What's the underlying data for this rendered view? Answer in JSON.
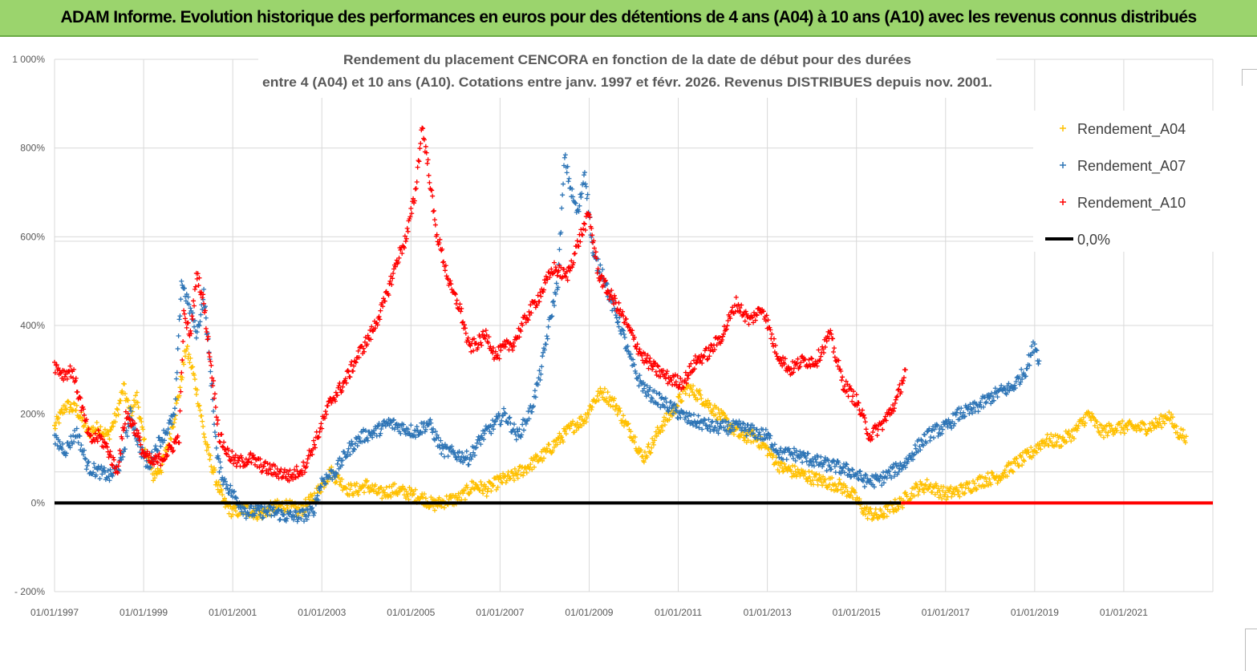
{
  "banner": {
    "title": "ADAM Informe. Evolution historique des performances en euros pour des détentions de 4 ans (A04) à 10 ans (A10) avec les revenus connus distribués"
  },
  "colors": {
    "banner_bg": "#9bd46d",
    "A04": "#ffc000",
    "A07": "#2e75b6",
    "A10": "#ff0000",
    "zero": "#000000",
    "grid": "#d9d9d9"
  },
  "chart_data": {
    "type": "scatter",
    "title_line1": "Rendement du placement CENCORA en fonction de la date de début pour des durées",
    "title_line2": "entre 4 (A04) et 10 ans (A10). Cotations entre janv. 1997 et févr. 2026. Revenus DISTRIBUES depuis nov. 2001.",
    "xlabel": "",
    "ylabel": "",
    "x_range": [
      "01/01/1997",
      "01/01/2023"
    ],
    "x_ticks": [
      "01/01/1997",
      "01/01/1999",
      "01/01/2001",
      "01/01/2003",
      "01/01/2005",
      "01/01/2007",
      "01/01/2009",
      "01/01/2011",
      "01/01/2013",
      "01/01/2015",
      "01/01/2017",
      "01/01/2019",
      "01/01/2021"
    ],
    "ylim": [
      -200,
      1000
    ],
    "y_ticks": [
      -200,
      0,
      200,
      400,
      600,
      800,
      1000
    ],
    "y_tick_labels": [
      "- 200%",
      "0%",
      "200%",
      "400%",
      "600%",
      "800%",
      "1 000%"
    ],
    "grid": true,
    "legend_position": "top-right",
    "series": [
      {
        "name": "Rendement_A04",
        "marker": "+",
        "points": [
          [
            1997.0,
            170
          ],
          [
            1997.25,
            220
          ],
          [
            1997.5,
            210
          ],
          [
            1997.75,
            160
          ],
          [
            1998.0,
            170
          ],
          [
            1998.2,
            150
          ],
          [
            1998.4,
            200
          ],
          [
            1998.55,
            260
          ],
          [
            1998.7,
            200
          ],
          [
            1998.85,
            240
          ],
          [
            1999.0,
            140
          ],
          [
            1999.2,
            60
          ],
          [
            1999.4,
            80
          ],
          [
            1999.6,
            150
          ],
          [
            1999.8,
            250
          ],
          [
            1999.95,
            350
          ],
          [
            2000.1,
            300
          ],
          [
            2000.25,
            220
          ],
          [
            2000.4,
            130
          ],
          [
            2000.6,
            60
          ],
          [
            2000.8,
            0
          ],
          [
            2001.0,
            -20
          ],
          [
            2001.3,
            -15
          ],
          [
            2001.6,
            -25
          ],
          [
            2001.9,
            -10
          ],
          [
            2002.2,
            -5
          ],
          [
            2002.5,
            -20
          ],
          [
            2002.8,
            10
          ],
          [
            2003.0,
            40
          ],
          [
            2003.2,
            70
          ],
          [
            2003.4,
            50
          ],
          [
            2003.6,
            30
          ],
          [
            2003.8,
            30
          ],
          [
            2004.0,
            40
          ],
          [
            2004.3,
            20
          ],
          [
            2004.6,
            30
          ],
          [
            2005.0,
            20
          ],
          [
            2005.3,
            10
          ],
          [
            2005.5,
            -5
          ],
          [
            2005.8,
            5
          ],
          [
            2006.1,
            10
          ],
          [
            2006.4,
            40
          ],
          [
            2006.7,
            30
          ],
          [
            2007.0,
            50
          ],
          [
            2007.3,
            60
          ],
          [
            2007.6,
            80
          ],
          [
            2008.0,
            110
          ],
          [
            2008.3,
            140
          ],
          [
            2008.6,
            170
          ],
          [
            2008.9,
            190
          ],
          [
            2009.1,
            230
          ],
          [
            2009.3,
            250
          ],
          [
            2009.6,
            220
          ],
          [
            2009.8,
            180
          ],
          [
            2010.0,
            150
          ],
          [
            2010.2,
            100
          ],
          [
            2010.4,
            130
          ],
          [
            2010.6,
            170
          ],
          [
            2010.9,
            210
          ],
          [
            2011.2,
            260
          ],
          [
            2011.5,
            240
          ],
          [
            2011.8,
            210
          ],
          [
            2012.1,
            180
          ],
          [
            2012.4,
            150
          ],
          [
            2012.7,
            150
          ],
          [
            2013.0,
            120
          ],
          [
            2013.3,
            80
          ],
          [
            2013.6,
            70
          ],
          [
            2013.9,
            60
          ],
          [
            2014.2,
            50
          ],
          [
            2014.6,
            40
          ],
          [
            2014.9,
            20
          ],
          [
            2015.2,
            -20
          ],
          [
            2015.5,
            -30
          ],
          [
            2015.8,
            -10
          ],
          [
            2016.0,
            0
          ],
          [
            2016.3,
            30
          ],
          [
            2016.6,
            40
          ],
          [
            2017.0,
            20
          ],
          [
            2017.4,
            30
          ],
          [
            2017.8,
            50
          ],
          [
            2018.2,
            60
          ],
          [
            2018.6,
            90
          ],
          [
            2018.9,
            110
          ],
          [
            2019.2,
            140
          ],
          [
            2019.6,
            140
          ],
          [
            2019.9,
            160
          ],
          [
            2020.2,
            200
          ],
          [
            2020.5,
            160
          ],
          [
            2020.8,
            170
          ],
          [
            2021.2,
            170
          ],
          [
            2021.5,
            170
          ],
          [
            2021.8,
            180
          ],
          [
            2022.0,
            200
          ],
          [
            2022.2,
            160
          ],
          [
            2022.4,
            150
          ]
        ]
      },
      {
        "name": "Rendement_A07",
        "marker": "+",
        "points": [
          [
            1997.0,
            140
          ],
          [
            1997.25,
            120
          ],
          [
            1997.5,
            160
          ],
          [
            1997.75,
            80
          ],
          [
            1998.0,
            70
          ],
          [
            1998.25,
            60
          ],
          [
            1998.5,
            90
          ],
          [
            1998.7,
            200
          ],
          [
            1998.9,
            130
          ],
          [
            1999.1,
            80
          ],
          [
            1999.3,
            130
          ],
          [
            1999.5,
            160
          ],
          [
            1999.7,
            200
          ],
          [
            1999.85,
            500
          ],
          [
            2000.0,
            450
          ],
          [
            2000.2,
            380
          ],
          [
            2000.35,
            470
          ],
          [
            2000.5,
            300
          ],
          [
            2000.65,
            100
          ],
          [
            2000.8,
            50
          ],
          [
            2001.0,
            20
          ],
          [
            2001.3,
            -20
          ],
          [
            2001.6,
            -20
          ],
          [
            2001.9,
            -20
          ],
          [
            2002.2,
            -30
          ],
          [
            2002.5,
            -30
          ],
          [
            2002.8,
            -20
          ],
          [
            2003.0,
            50
          ],
          [
            2003.3,
            70
          ],
          [
            2003.6,
            120
          ],
          [
            2003.9,
            150
          ],
          [
            2004.2,
            160
          ],
          [
            2004.5,
            180
          ],
          [
            2004.8,
            170
          ],
          [
            2005.1,
            160
          ],
          [
            2005.4,
            180
          ],
          [
            2005.7,
            120
          ],
          [
            2006.0,
            110
          ],
          [
            2006.3,
            100
          ],
          [
            2006.6,
            150
          ],
          [
            2006.9,
            180
          ],
          [
            2007.1,
            200
          ],
          [
            2007.4,
            150
          ],
          [
            2007.7,
            210
          ],
          [
            2007.9,
            290
          ],
          [
            2008.1,
            400
          ],
          [
            2008.3,
            500
          ],
          [
            2008.45,
            780
          ],
          [
            2008.6,
            700
          ],
          [
            2008.75,
            650
          ],
          [
            2008.9,
            750
          ],
          [
            2009.1,
            550
          ],
          [
            2009.3,
            520
          ],
          [
            2009.5,
            450
          ],
          [
            2009.7,
            400
          ],
          [
            2009.9,
            330
          ],
          [
            2010.1,
            280
          ],
          [
            2010.3,
            250
          ],
          [
            2010.6,
            230
          ],
          [
            2010.9,
            210
          ],
          [
            2011.2,
            190
          ],
          [
            2011.5,
            180
          ],
          [
            2011.8,
            170
          ],
          [
            2012.1,
            170
          ],
          [
            2012.4,
            170
          ],
          [
            2012.7,
            160
          ],
          [
            2013.0,
            150
          ],
          [
            2013.3,
            110
          ],
          [
            2013.6,
            110
          ],
          [
            2013.9,
            100
          ],
          [
            2014.2,
            90
          ],
          [
            2014.6,
            80
          ],
          [
            2014.9,
            70
          ],
          [
            2015.2,
            50
          ],
          [
            2015.5,
            50
          ],
          [
            2015.8,
            70
          ],
          [
            2016.1,
            90
          ],
          [
            2016.4,
            130
          ],
          [
            2016.7,
            160
          ],
          [
            2017.0,
            170
          ],
          [
            2017.3,
            200
          ],
          [
            2017.6,
            210
          ],
          [
            2017.9,
            230
          ],
          [
            2018.2,
            250
          ],
          [
            2018.5,
            260
          ],
          [
            2018.8,
            300
          ],
          [
            2019.0,
            360
          ],
          [
            2019.1,
            320
          ]
        ]
      },
      {
        "name": "Rendement_A10",
        "marker": "+",
        "points": [
          [
            1997.0,
            310
          ],
          [
            1997.2,
            290
          ],
          [
            1997.4,
            300
          ],
          [
            1997.6,
            220
          ],
          [
            1997.8,
            140
          ],
          [
            1998.0,
            150
          ],
          [
            1998.2,
            120
          ],
          [
            1998.4,
            70
          ],
          [
            1998.6,
            200
          ],
          [
            1998.8,
            170
          ],
          [
            1999.0,
            110
          ],
          [
            1999.2,
            90
          ],
          [
            1999.4,
            100
          ],
          [
            1999.6,
            120
          ],
          [
            1999.8,
            150
          ],
          [
            1999.9,
            420
          ],
          [
            2000.05,
            380
          ],
          [
            2000.2,
            520
          ],
          [
            2000.35,
            450
          ],
          [
            2000.5,
            320
          ],
          [
            2000.7,
            150
          ],
          [
            2000.9,
            110
          ],
          [
            2001.1,
            90
          ],
          [
            2001.4,
            100
          ],
          [
            2001.7,
            80
          ],
          [
            2002.0,
            70
          ],
          [
            2002.3,
            60
          ],
          [
            2002.6,
            80
          ],
          [
            2002.9,
            150
          ],
          [
            2003.2,
            230
          ],
          [
            2003.5,
            270
          ],
          [
            2003.8,
            330
          ],
          [
            2004.1,
            380
          ],
          [
            2004.4,
            450
          ],
          [
            2004.7,
            550
          ],
          [
            2004.9,
            600
          ],
          [
            2005.1,
            700
          ],
          [
            2005.25,
            850
          ],
          [
            2005.4,
            750
          ],
          [
            2005.55,
            620
          ],
          [
            2005.7,
            560
          ],
          [
            2005.9,
            480
          ],
          [
            2006.1,
            440
          ],
          [
            2006.3,
            350
          ],
          [
            2006.5,
            360
          ],
          [
            2006.7,
            380
          ],
          [
            2006.9,
            330
          ],
          [
            2007.1,
            350
          ],
          [
            2007.3,
            360
          ],
          [
            2007.6,
            420
          ],
          [
            2007.9,
            470
          ],
          [
            2008.2,
            530
          ],
          [
            2008.5,
            510
          ],
          [
            2008.8,
            600
          ],
          [
            2009.0,
            650
          ],
          [
            2009.2,
            520
          ],
          [
            2009.4,
            480
          ],
          [
            2009.6,
            450
          ],
          [
            2009.9,
            390
          ],
          [
            2010.2,
            330
          ],
          [
            2010.5,
            300
          ],
          [
            2010.8,
            280
          ],
          [
            2011.1,
            270
          ],
          [
            2011.4,
            320
          ],
          [
            2011.7,
            340
          ],
          [
            2012.0,
            380
          ],
          [
            2012.3,
            450
          ],
          [
            2012.6,
            410
          ],
          [
            2012.9,
            440
          ],
          [
            2013.2,
            340
          ],
          [
            2013.5,
            300
          ],
          [
            2013.8,
            320
          ],
          [
            2014.1,
            320
          ],
          [
            2014.4,
            380
          ],
          [
            2014.7,
            270
          ],
          [
            2015.0,
            230
          ],
          [
            2015.3,
            150
          ],
          [
            2015.6,
            180
          ],
          [
            2015.9,
            230
          ],
          [
            2016.1,
            300
          ]
        ]
      },
      {
        "name": "0,0%",
        "type": "line",
        "points": [
          [
            1997.0,
            0
          ],
          [
            2016.0,
            0
          ]
        ]
      },
      {
        "name": "",
        "description_only": false,
        "color_ref": "A10",
        "type": "line",
        "points": [
          [
            2016.0,
            0
          ],
          [
            2023.0,
            0
          ]
        ]
      }
    ],
    "extra_gridlines_y": [
      70,
      590
    ]
  }
}
